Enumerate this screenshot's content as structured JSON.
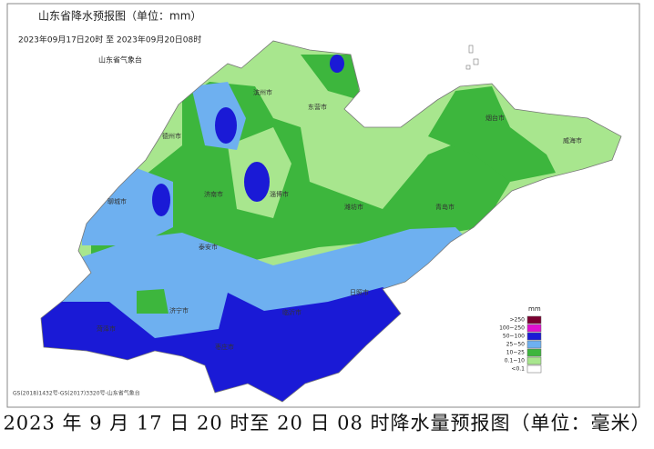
{
  "map": {
    "title": "山东省降水预报图（单位：mm）",
    "subtitle": "2023年09月17日20时 至 2023年09月20日08时",
    "issuer": "山东省气象台",
    "cities": [
      "滨州市",
      "东营市",
      "德州市",
      "聊城市",
      "济南市",
      "淄博市",
      "潍坊市",
      "烟台市",
      "威海市",
      "青岛市",
      "日照市",
      "临沂市",
      "枣庄市",
      "济宁市",
      "菏泽市",
      "泰安市"
    ],
    "legend": {
      "unit": "mm",
      "items": [
        {
          "label": ">250",
          "color": "#7a0030"
        },
        {
          "label": "100~250",
          "color": "#e010d0"
        },
        {
          "label": "50~100",
          "color": "#1a1ad6"
        },
        {
          "label": "25~50",
          "color": "#6eb0f0"
        },
        {
          "label": "10~25",
          "color": "#3db63d"
        },
        {
          "label": "0.1~10",
          "color": "#a8e68e"
        },
        {
          "label": "<0.1",
          "color": "#ffffff"
        }
      ]
    },
    "footer": "GS(2018)1432号-GS(2017)3320号-山东省气象台",
    "caption": "2023 年 9 月 17 日 20 时至 20 日 08 时降水量预报图（单位：毫米）"
  }
}
